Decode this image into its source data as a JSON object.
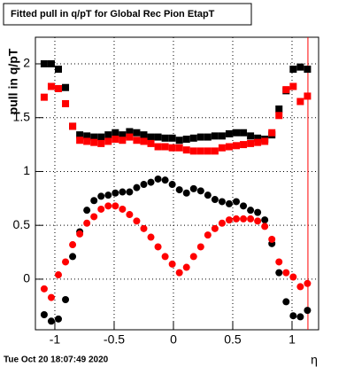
{
  "chart_data": {
    "type": "scatter",
    "title": "Fitted pull in q/pT for Global Rec Pion EtapT",
    "y_label": "pull in q/pT",
    "x_label": "η",
    "timestamp": "Tue Oct 20 18:07:49 2020",
    "x": [
      -1.09,
      -1.03,
      -0.97,
      -0.91,
      -0.85,
      -0.79,
      -0.73,
      -0.67,
      -0.61,
      -0.55,
      -0.49,
      -0.43,
      -0.37,
      -0.31,
      -0.25,
      -0.19,
      -0.13,
      -0.07,
      -0.01,
      0.05,
      0.11,
      0.17,
      0.23,
      0.29,
      0.35,
      0.41,
      0.47,
      0.53,
      0.59,
      0.65,
      0.71,
      0.77,
      0.83,
      0.89,
      0.95,
      1.01,
      1.07,
      1.13
    ],
    "series": [
      {
        "color": "#000000",
        "marker": "square",
        "values": [
          2.0,
          2.0,
          1.95,
          1.78,
          1.42,
          1.34,
          1.33,
          1.32,
          1.32,
          1.34,
          1.36,
          1.34,
          1.37,
          1.36,
          1.34,
          1.32,
          1.32,
          1.31,
          1.31,
          1.29,
          1.3,
          1.31,
          1.32,
          1.32,
          1.33,
          1.33,
          1.35,
          1.36,
          1.36,
          1.33,
          1.31,
          1.3,
          1.34,
          1.58,
          1.75,
          1.95,
          1.97,
          1.95
        ]
      },
      {
        "color": "#ff0000",
        "marker": "square",
        "values": [
          1.69,
          1.79,
          1.77,
          1.63,
          1.42,
          1.29,
          1.28,
          1.27,
          1.26,
          1.28,
          1.3,
          1.29,
          1.32,
          1.29,
          1.28,
          1.26,
          1.23,
          1.23,
          1.22,
          1.22,
          1.2,
          1.19,
          1.19,
          1.19,
          1.19,
          1.22,
          1.23,
          1.24,
          1.25,
          1.26,
          1.27,
          1.28,
          1.36,
          1.52,
          1.76,
          1.79,
          1.65,
          1.7
        ]
      },
      {
        "color": "#000000",
        "marker": "circle",
        "values": [
          -0.33,
          -0.39,
          -0.37,
          -0.19,
          0.21,
          0.44,
          0.64,
          0.73,
          0.77,
          0.78,
          0.8,
          0.81,
          0.81,
          0.85,
          0.88,
          0.9,
          0.93,
          0.92,
          0.88,
          0.83,
          0.8,
          0.84,
          0.82,
          0.78,
          0.74,
          0.72,
          0.7,
          0.72,
          0.68,
          0.64,
          0.62,
          0.55,
          0.33,
          0.06,
          -0.21,
          -0.34,
          -0.35,
          -0.29
        ]
      },
      {
        "color": "#ff0000",
        "marker": "circle",
        "values": [
          -0.09,
          -0.17,
          0.04,
          0.16,
          0.32,
          0.42,
          0.52,
          0.58,
          0.65,
          0.68,
          0.68,
          0.65,
          0.6,
          0.54,
          0.47,
          0.39,
          0.3,
          0.21,
          0.14,
          0.06,
          0.11,
          0.21,
          0.3,
          0.41,
          0.47,
          0.52,
          0.55,
          0.56,
          0.56,
          0.56,
          0.54,
          0.49,
          0.37,
          0.16,
          0.06,
          0.02,
          -0.07,
          -0.04
        ]
      }
    ],
    "vline": {
      "value": 1.134,
      "color": "#ff0000"
    },
    "xlim": [
      -1.164,
      1.224
    ],
    "ylim": [
      -0.47,
      2.247
    ],
    "xticks": [
      -1,
      -0.5,
      0,
      0.5,
      1
    ],
    "yticks": [
      0,
      0.5,
      1,
      1.5,
      2
    ],
    "grid": true
  }
}
